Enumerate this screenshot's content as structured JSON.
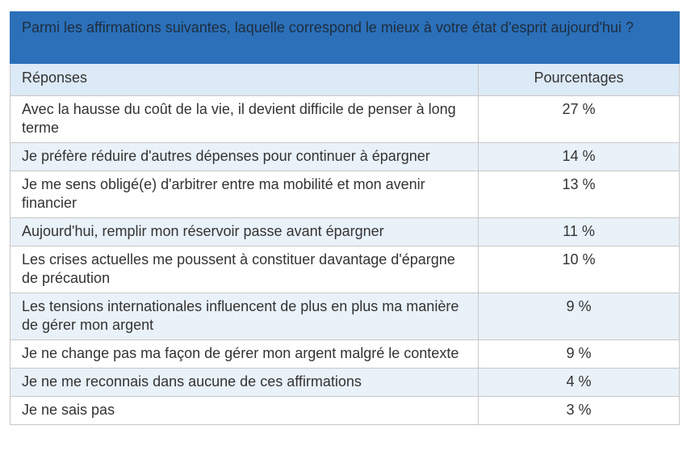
{
  "title": "Parmi les affirmations suivantes, laquelle correspond le mieux à votre état d'esprit aujourd'hui ?",
  "headers": {
    "answers": "Réponses",
    "percentages": "Pourcentages"
  },
  "rows": [
    {
      "answer": "Avec la hausse du coût de la vie, il devient difficile de penser à long terme",
      "percent": "27 %"
    },
    {
      "answer": "Je préfère réduire d'autres dépenses pour continuer à épargner",
      "percent": "14 %"
    },
    {
      "answer": "Je me sens obligé(e) d'arbitrer entre ma mobilité et mon avenir financier",
      "percent": "13 %"
    },
    {
      "answer": "Aujourd'hui, remplir mon réservoir passe avant épargner",
      "percent": "11 %"
    },
    {
      "answer": "Les crises actuelles me poussent à constituer davantage d'épargne de précaution",
      "percent": "10 %"
    },
    {
      "answer": "Les tensions internationales influencent de plus en plus ma manière de gérer mon argent",
      "percent": "9 %"
    },
    {
      "answer": "Je ne change pas ma façon de gérer mon argent malgré le contexte",
      "percent": "9 %"
    },
    {
      "answer": "Je ne me reconnais dans aucune de ces affirmations",
      "percent": "4 %"
    },
    {
      "answer": "Je ne sais pas",
      "percent": "3 %"
    }
  ],
  "colors": {
    "title_background": "#2b70b9",
    "header_background": "#dce9f6",
    "striped_row_background": "#e9f1f9",
    "border": "#c8c8c8"
  }
}
